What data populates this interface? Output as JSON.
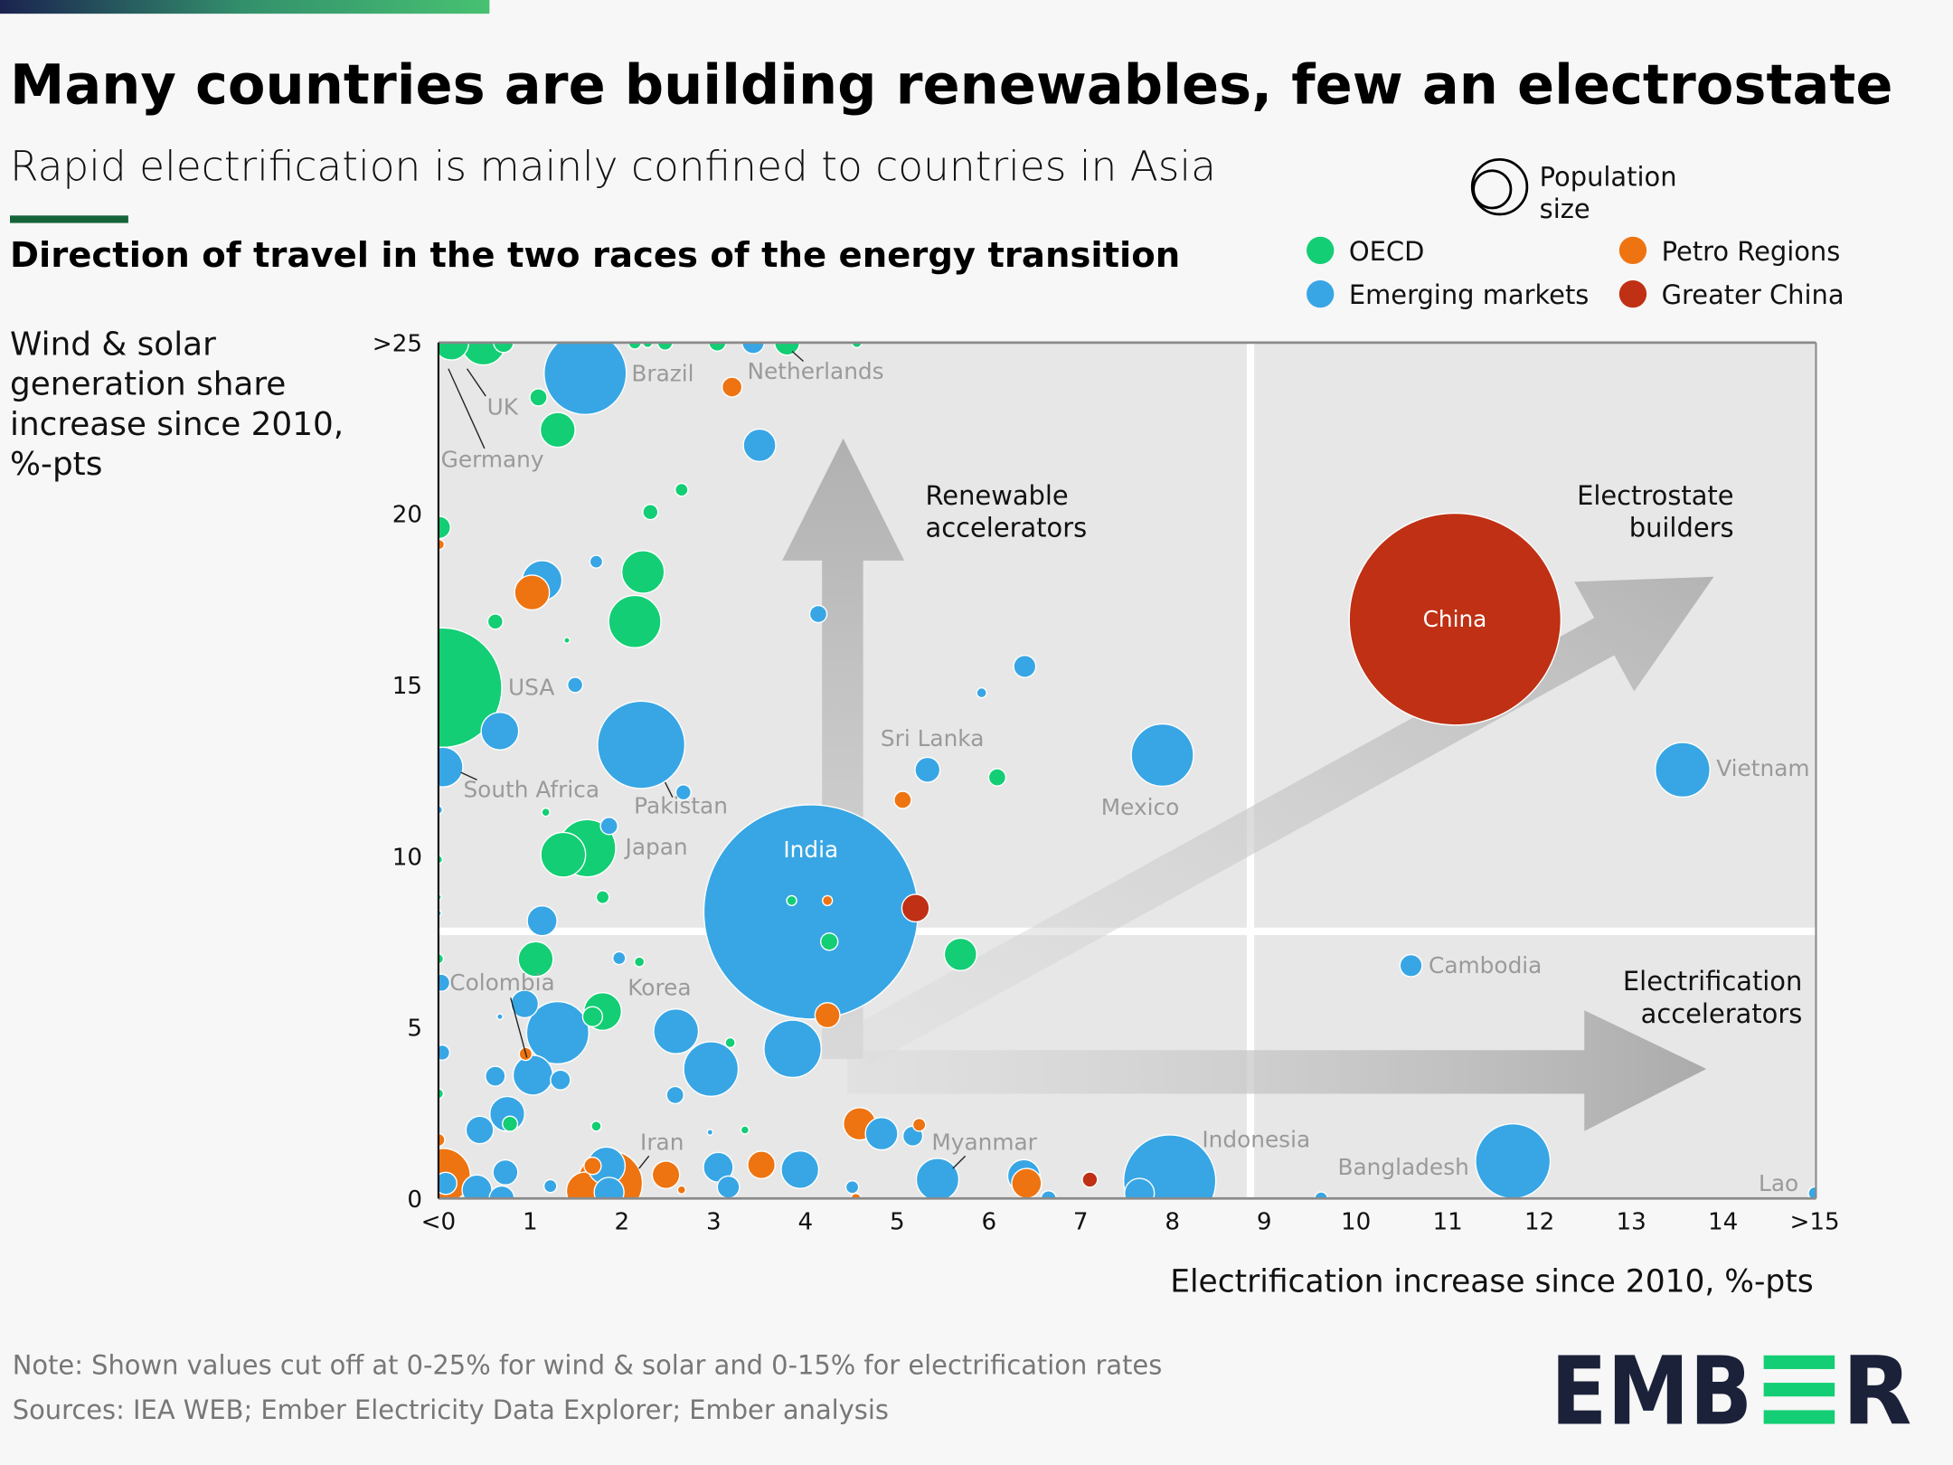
{
  "header": {
    "title": "Many countries are building renewables, few an electrostate",
    "subtitle": "Rapid electrification is mainly confined to countries in Asia",
    "section_title": "Direction of travel in the two races of the energy transition"
  },
  "legend": {
    "size_label_1": "Population",
    "size_label_2": "size",
    "groups": [
      {
        "name": "OECD",
        "color": "#13ce74"
      },
      {
        "name": "Emerging markets",
        "color": "#38a6e4"
      },
      {
        "name": "Petro Regions",
        "color": "#ee7411"
      },
      {
        "name": "Greater China",
        "color": "#bf3014"
      }
    ]
  },
  "footer": {
    "note": "Note: Shown values cut off at 0-25% for wind & solar and 0-15% for electrification rates",
    "sources": "Sources: IEA WEB; Ember Electricity Data Explorer; Ember analysis",
    "logo": "EMBER"
  },
  "chart_data": {
    "type": "scatter",
    "subtype": "bubble",
    "title": "Direction of travel in the two races of the energy transition",
    "ylabel_lines": [
      "Wind & solar",
      "generation share",
      "increase since 2010,",
      "%-pts"
    ],
    "xlabel": "Electrification increase since 2010, %-pts",
    "xlim": [
      0,
      15
    ],
    "ylim": [
      0,
      25
    ],
    "x_ticks": [
      {
        "v": 0,
        "label": "<0"
      },
      {
        "v": 1,
        "label": "1"
      },
      {
        "v": 2,
        "label": "2"
      },
      {
        "v": 3,
        "label": "3"
      },
      {
        "v": 4,
        "label": "4"
      },
      {
        "v": 5,
        "label": "5"
      },
      {
        "v": 6,
        "label": "6"
      },
      {
        "v": 7,
        "label": "7"
      },
      {
        "v": 8,
        "label": "8"
      },
      {
        "v": 9,
        "label": "9"
      },
      {
        "v": 10,
        "label": "10"
      },
      {
        "v": 11,
        "label": "11"
      },
      {
        "v": 12,
        "label": "12"
      },
      {
        "v": 13,
        "label": "13"
      },
      {
        "v": 14,
        "label": "14"
      },
      {
        "v": 15,
        "label": ">15"
      }
    ],
    "y_ticks": [
      {
        "v": 0,
        "label": "0"
      },
      {
        "v": 5,
        "label": "5"
      },
      {
        "v": 10,
        "label": "10"
      },
      {
        "v": 15,
        "label": "15"
      },
      {
        "v": 20,
        "label": "20"
      },
      {
        "v": 25,
        "label": ">25"
      }
    ],
    "quadrant_split": {
      "x": 8.85,
      "y": 7.8
    },
    "quadrant_labels": {
      "renewable": [
        "Renewable",
        "accelerators"
      ],
      "electrostate": [
        "Electrostate",
        "builders"
      ],
      "electrification": [
        "Electrification",
        "accelerators"
      ]
    },
    "country_labels": [
      "Brazil",
      "Netherlands",
      "UK",
      "Germany",
      "USA",
      "South Africa",
      "Pakistan",
      "Japan",
      "India",
      "Sri Lanka",
      "Mexico",
      "China",
      "Vietnam",
      "Cambodia",
      "Colombia",
      "Korea",
      "Iran",
      "Myanmar",
      "Indonesia",
      "Bangladesh",
      "Lao"
    ],
    "bubble_size_note": "population (relative, millions approx.)",
    "points": [
      {
        "g": "oecd",
        "x": 0.14,
        "y": 25,
        "pop": 37
      },
      {
        "g": "oecd",
        "x": 0.49,
        "y": 25,
        "pop": 61
      },
      {
        "g": "oecd",
        "x": 0.71,
        "y": 25,
        "pop": 12
      },
      {
        "g": "oecd",
        "x": 2.14,
        "y": 25,
        "pop": 5
      },
      {
        "g": "oecd",
        "x": 2.28,
        "y": 25,
        "pop": 3
      },
      {
        "g": "oecd",
        "x": 2.47,
        "y": 25,
        "pop": 7
      },
      {
        "g": "oecd",
        "x": 3.04,
        "y": 25,
        "pop": 9
      },
      {
        "g": "emerging",
        "x": 3.43,
        "y": 25,
        "pop": 15
      },
      {
        "g": "oecd",
        "x": 3.8,
        "y": 25,
        "pop": 19,
        "name": "Netherlands"
      },
      {
        "g": "oecd",
        "x": 4.56,
        "y": 25,
        "pop": 3
      },
      {
        "g": "emerging",
        "x": 1.6,
        "y": 24.1,
        "pop": 206,
        "name": "Brazil"
      },
      {
        "g": "petro",
        "x": 3.2,
        "y": 23.7,
        "pop": 12
      },
      {
        "g": "oecd",
        "x": 1.09,
        "y": 23.4,
        "pop": 9
      },
      {
        "g": "oecd",
        "x": 1.3,
        "y": 22.45,
        "pop": 37
      },
      {
        "g": "emerging",
        "x": 3.5,
        "y": 22,
        "pop": 32
      },
      {
        "g": "oecd",
        "x": 2.65,
        "y": 20.7,
        "pop": 5
      },
      {
        "g": "oecd",
        "x": 2.31,
        "y": 20.05,
        "pop": 7
      },
      {
        "g": "oecd",
        "x": 0.01,
        "y": 19.6,
        "pop": 15
      },
      {
        "g": "petro",
        "x": 0.01,
        "y": 19.1,
        "pop": 3
      },
      {
        "g": "emerging",
        "x": 1.13,
        "y": 18.05,
        "pop": 48
      },
      {
        "g": "petro",
        "x": 1.02,
        "y": 17.7,
        "pop": 37
      },
      {
        "g": "emerging",
        "x": 1.72,
        "y": 18.6,
        "pop": 5
      },
      {
        "g": "oecd",
        "x": 2.23,
        "y": 18.3,
        "pop": 55
      },
      {
        "g": "oecd",
        "x": 2.14,
        "y": 16.85,
        "pop": 83
      },
      {
        "g": "oecd",
        "x": 0.62,
        "y": 16.85,
        "pop": 7
      },
      {
        "g": "oecd",
        "x": 1.4,
        "y": 16.3,
        "pop": 1
      },
      {
        "g": "emerging",
        "x": 4.14,
        "y": 17.07,
        "pop": 9
      },
      {
        "g": "emerging",
        "x": 6.39,
        "y": 15.54,
        "pop": 15
      },
      {
        "g": "emerging",
        "x": 5.92,
        "y": 14.77,
        "pop": 3
      },
      {
        "g": "oecd",
        "x": 0.04,
        "y": 14.92,
        "pop": 435,
        "name": "USA"
      },
      {
        "g": "emerging",
        "x": 1.49,
        "y": 15,
        "pop": 7
      },
      {
        "g": "emerging",
        "x": 0.67,
        "y": 13.65,
        "pop": 43
      },
      {
        "g": "emerging",
        "x": 2.21,
        "y": 13.25,
        "pop": 232,
        "name": "Pakistan"
      },
      {
        "g": "emerging",
        "x": 2.67,
        "y": 11.86,
        "pop": 7
      },
      {
        "g": "emerging",
        "x": 0.05,
        "y": 12.6,
        "pop": 48,
        "name": "South Africa"
      },
      {
        "g": "emerging",
        "x": 0,
        "y": 11.35,
        "pop": 2
      },
      {
        "g": "oecd",
        "x": 1.17,
        "y": 11.28,
        "pop": 2
      },
      {
        "g": "emerging",
        "x": 1.86,
        "y": 10.88,
        "pop": 9
      },
      {
        "g": "oecd",
        "x": 1.62,
        "y": 10.23,
        "pop": 100,
        "name": "Japan"
      },
      {
        "g": "oecd",
        "x": 1.36,
        "y": 10.04,
        "pop": 61
      },
      {
        "g": "emerging",
        "x": 5.33,
        "y": 12.52,
        "pop": 19,
        "name": "Sri Lanka"
      },
      {
        "g": "petro",
        "x": 5.06,
        "y": 11.64,
        "pop": 9
      },
      {
        "g": "oecd",
        "x": 6.09,
        "y": 12.3,
        "pop": 9
      },
      {
        "g": "emerging",
        "x": 7.89,
        "y": 12.95,
        "pop": 118,
        "name": "Mexico"
      },
      {
        "g": "oecd",
        "x": 0,
        "y": 9.9,
        "pop": 2
      },
      {
        "g": "oecd",
        "x": 0,
        "y": 8.8,
        "pop": 1
      },
      {
        "g": "emerging",
        "x": 0,
        "y": 8.33,
        "pop": 1
      },
      {
        "g": "oecd",
        "x": 1.79,
        "y": 8.8,
        "pop": 5
      },
      {
        "g": "emerging",
        "x": 4.06,
        "y": 8.37,
        "pop": 1398,
        "name": "India"
      },
      {
        "g": "oecd",
        "x": 3.85,
        "y": 8.7,
        "pop": 3
      },
      {
        "g": "petro",
        "x": 4.24,
        "y": 8.7,
        "pop": 3
      },
      {
        "g": "oecd",
        "x": 4.26,
        "y": 7.5,
        "pop": 9
      },
      {
        "g": "china",
        "x": 5.2,
        "y": 8.48,
        "pop": 23
      },
      {
        "g": "petro",
        "x": 4.24,
        "y": 5.35,
        "pop": 19
      },
      {
        "g": "oecd",
        "x": 5.69,
        "y": 7.13,
        "pop": 32
      },
      {
        "g": "emerging",
        "x": 1.13,
        "y": 8.11,
        "pop": 27
      },
      {
        "g": "oecd",
        "x": 1.06,
        "y": 6.99,
        "pop": 37
      },
      {
        "g": "emerging",
        "x": 1.97,
        "y": 7.02,
        "pop": 5
      },
      {
        "g": "oecd",
        "x": 2.19,
        "y": 6.91,
        "pop": 3
      },
      {
        "g": "emerging",
        "x": 0.03,
        "y": 6.3,
        "pop": 9,
        "name": "Colombia"
      },
      {
        "g": "oecd",
        "x": 0,
        "y": 7,
        "pop": 3
      },
      {
        "g": "emerging",
        "x": 0.94,
        "y": 5.68,
        "pop": 23
      },
      {
        "g": "emerging",
        "x": 1.3,
        "y": 4.84,
        "pop": 118
      },
      {
        "g": "oecd",
        "x": 1.79,
        "y": 5.46,
        "pop": 43,
        "name": "Korea"
      },
      {
        "g": "oecd",
        "x": 1.68,
        "y": 5.31,
        "pop": 12
      },
      {
        "g": "petro",
        "x": 0.95,
        "y": 4.22,
        "pop": 5
      },
      {
        "g": "emerging",
        "x": 0.67,
        "y": 5.31,
        "pop": 1
      },
      {
        "g": "emerging",
        "x": 2.59,
        "y": 4.88,
        "pop": 61
      },
      {
        "g": "emerging",
        "x": 2.97,
        "y": 3.78,
        "pop": 91
      },
      {
        "g": "oecd",
        "x": 3.18,
        "y": 4.55,
        "pop": 3
      },
      {
        "g": "emerging",
        "x": 3.86,
        "y": 4.37,
        "pop": 100
      },
      {
        "g": "emerging",
        "x": 1.03,
        "y": 3.6,
        "pop": 48
      },
      {
        "g": "emerging",
        "x": 1.33,
        "y": 3.46,
        "pop": 12
      },
      {
        "g": "emerging",
        "x": 0.62,
        "y": 3.57,
        "pop": 12
      },
      {
        "g": "emerging",
        "x": 0.04,
        "y": 4.26,
        "pop": 7
      },
      {
        "g": "oecd",
        "x": 0,
        "y": 3.06,
        "pop": 3
      },
      {
        "g": "emerging",
        "x": 2.58,
        "y": 3.02,
        "pop": 9
      },
      {
        "g": "emerging",
        "x": 0.75,
        "y": 2.47,
        "pop": 37
      },
      {
        "g": "oecd",
        "x": 0.78,
        "y": 2.18,
        "pop": 7
      },
      {
        "g": "emerging",
        "x": 0.45,
        "y": 2,
        "pop": 23
      },
      {
        "g": "oecd",
        "x": 1.72,
        "y": 2.11,
        "pop": 3
      },
      {
        "g": "emerging",
        "x": 2.96,
        "y": 1.93,
        "pop": 1
      },
      {
        "g": "oecd",
        "x": 3.34,
        "y": 2,
        "pop": 2
      },
      {
        "g": "petro",
        "x": 4.59,
        "y": 2.18,
        "pop": 32
      },
      {
        "g": "emerging",
        "x": 4.83,
        "y": 1.89,
        "pop": 32
      },
      {
        "g": "emerging",
        "x": 5.17,
        "y": 1.82,
        "pop": 12
      },
      {
        "g": "petro",
        "x": 5.24,
        "y": 2.15,
        "pop": 5
      },
      {
        "g": "petro",
        "x": 1.87,
        "y": 0.44,
        "pop": 128,
        "name": "Iran"
      },
      {
        "g": "petro",
        "x": 1.6,
        "y": 0.22,
        "pop": 43
      },
      {
        "g": "emerging",
        "x": 1.83,
        "y": 0.95,
        "pop": 43
      },
      {
        "g": "petro",
        "x": 1.68,
        "y": 0.95,
        "pop": 9
      },
      {
        "g": "emerging",
        "x": 1.86,
        "y": 0.18,
        "pop": 27
      },
      {
        "g": "petro",
        "x": 2.48,
        "y": 0.69,
        "pop": 23
      },
      {
        "g": "petro",
        "x": 2.65,
        "y": 0.25,
        "pop": 2
      },
      {
        "g": "emerging",
        "x": 3.05,
        "y": 0.91,
        "pop": 27
      },
      {
        "g": "emerging",
        "x": 3.16,
        "y": 0.33,
        "pop": 15
      },
      {
        "g": "petro",
        "x": 3.52,
        "y": 0.98,
        "pop": 23
      },
      {
        "g": "emerging",
        "x": 3.94,
        "y": 0.84,
        "pop": 43
      },
      {
        "g": "emerging",
        "x": 4.51,
        "y": 0.33,
        "pop": 5
      },
      {
        "g": "petro",
        "x": 4.55,
        "y": 0,
        "pop": 3
      },
      {
        "g": "emerging",
        "x": 5.44,
        "y": 0.55,
        "pop": 55,
        "name": "Myanmar"
      },
      {
        "g": "petro",
        "x": 6.41,
        "y": 0.44,
        "pop": 27
      },
      {
        "g": "emerging",
        "x": 6.38,
        "y": 0.66,
        "pop": 32
      },
      {
        "g": "emerging",
        "x": 6.65,
        "y": 0,
        "pop": 7
      },
      {
        "g": "china",
        "x": 7.1,
        "y": 0.55,
        "pop": 7
      },
      {
        "g": "emerging",
        "x": 7.97,
        "y": 0.51,
        "pop": 259,
        "name": "Indonesia"
      },
      {
        "g": "emerging",
        "x": 7.64,
        "y": 0.15,
        "pop": 27
      },
      {
        "g": "emerging",
        "x": 9.62,
        "y": 0,
        "pop": 5
      },
      {
        "g": "petro",
        "x": 0.05,
        "y": 0.66,
        "pop": 91
      },
      {
        "g": "petro",
        "x": 0,
        "y": 1.71,
        "pop": 5
      },
      {
        "g": "emerging",
        "x": 0.08,
        "y": 0.44,
        "pop": 15
      },
      {
        "g": "emerging",
        "x": 0.73,
        "y": 0.76,
        "pop": 19
      },
      {
        "g": "emerging",
        "x": 0.69,
        "y": 0,
        "pop": 19
      },
      {
        "g": "emerging",
        "x": 0.42,
        "y": 0.25,
        "pop": 27
      },
      {
        "g": "emerging",
        "x": 1.22,
        "y": 0.36,
        "pop": 5
      },
      {
        "g": "emerging",
        "x": 11.71,
        "y": 1.09,
        "pop": 170,
        "name": "Bangladesh"
      },
      {
        "g": "emerging",
        "x": 13.56,
        "y": 12.52,
        "pop": 91,
        "name": "Vietnam"
      },
      {
        "g": "emerging",
        "x": 10.6,
        "y": 6.8,
        "pop": 15,
        "name": "Cambodia"
      },
      {
        "g": "emerging",
        "x": 15,
        "y": 0.15,
        "pop": 5,
        "name": "Lao"
      },
      {
        "g": "china",
        "x": 11.08,
        "y": 16.92,
        "pop": 1366,
        "name": "China"
      }
    ]
  }
}
